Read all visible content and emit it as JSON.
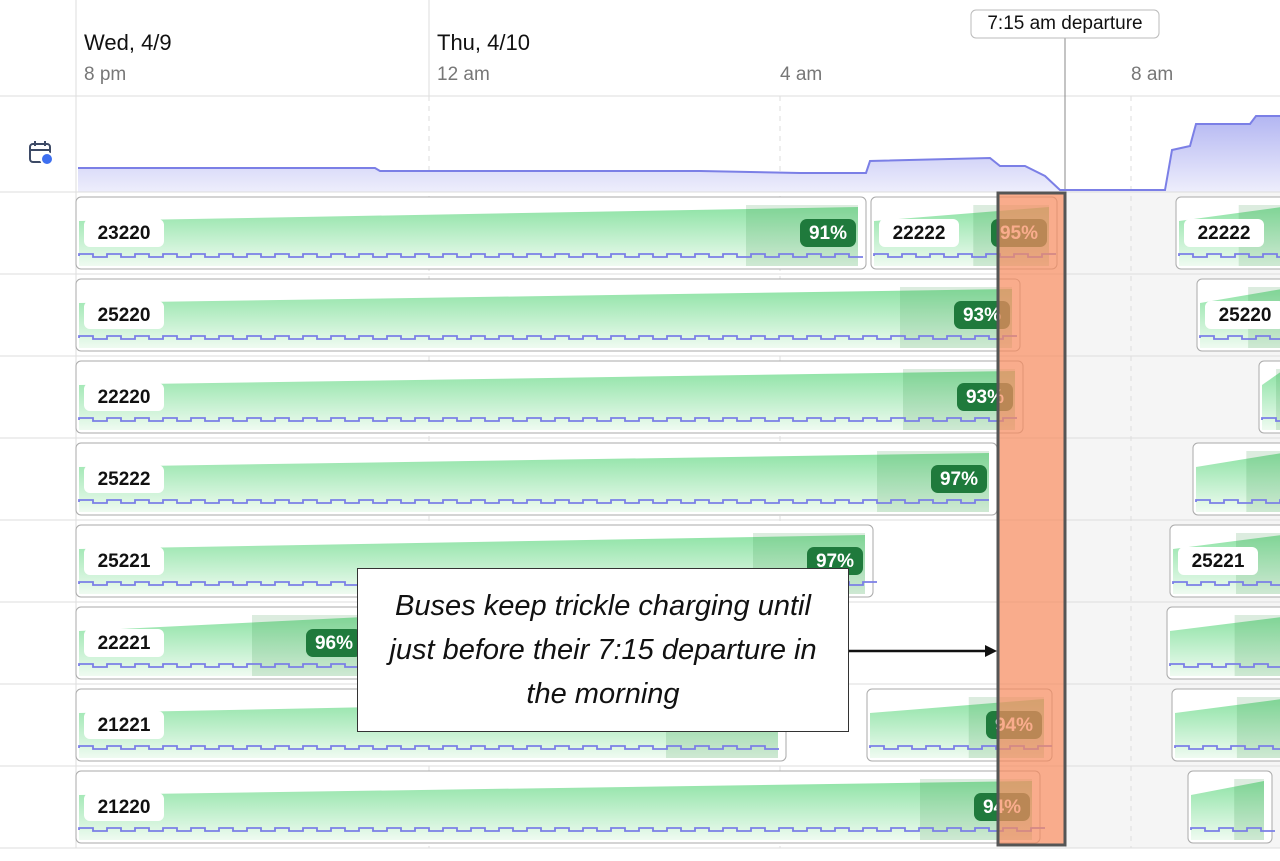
{
  "header": {
    "dates": [
      "Wed, 4/9",
      "Thu, 4/10"
    ],
    "times": [
      "8 pm",
      "12 am",
      "4 am",
      "8 am"
    ],
    "departure": "7:15 am departure"
  },
  "rows": [
    {
      "sessions": [
        {
          "bus": "23220",
          "soc": "91%"
        },
        {
          "bus": "22222",
          "soc": "95%"
        },
        {
          "bus": "22222"
        }
      ]
    },
    {
      "sessions": [
        {
          "bus": "25220",
          "soc": "93%"
        },
        {
          "bus": "25220"
        }
      ]
    },
    {
      "sessions": [
        {
          "bus": "22220",
          "soc": "93%"
        }
      ]
    },
    {
      "sessions": [
        {
          "bus": "25222",
          "soc": "97%"
        }
      ]
    },
    {
      "sessions": [
        {
          "bus": "25221",
          "soc": "97%"
        },
        {
          "bus": "25221"
        }
      ]
    },
    {
      "sessions": [
        {
          "bus": "22221",
          "soc": "96%"
        }
      ]
    },
    {
      "sessions": [
        {
          "bus": "21221"
        },
        {
          "soc": "94%"
        }
      ]
    },
    {
      "sessions": [
        {
          "bus": "21220",
          "soc": "94%"
        }
      ]
    }
  ],
  "callout": "Buses keep trickle charging until just before their 7:15 departure in the morning"
}
